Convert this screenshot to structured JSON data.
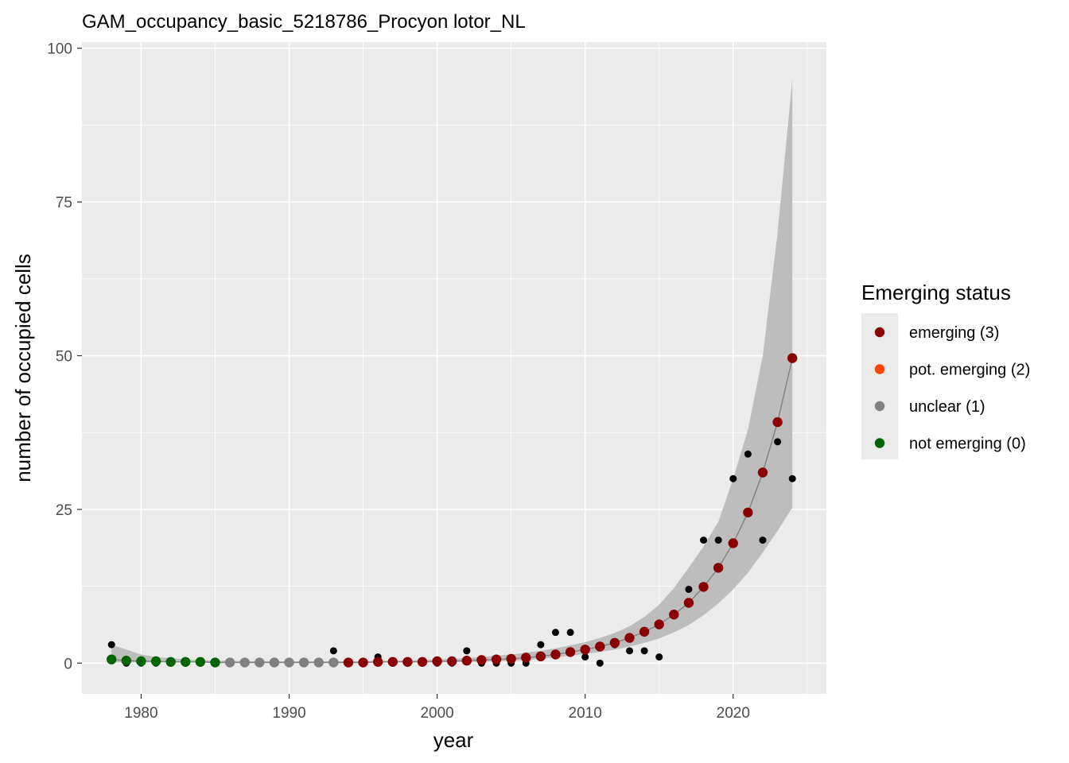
{
  "chart_data": {
    "type": "scatter",
    "title": "GAM_occupancy_basic_5218786_Procyon lotor_NL",
    "xlabel": "year",
    "ylabel": "number of occupied cells",
    "xlim": [
      1976,
      2026.3
    ],
    "ylim": [
      -5,
      101
    ],
    "x_ticks": [
      1980,
      1990,
      2000,
      2010,
      2020
    ],
    "y_ticks": [
      0,
      25,
      50,
      75,
      100
    ],
    "grid": true,
    "background": "#ebebeb",
    "legend": {
      "title": "Emerging status",
      "placement": "right",
      "items": [
        {
          "label": "emerging (3)",
          "color": "#8b0000"
        },
        {
          "label": "pot. emerging (2)",
          "color": "#ff4500"
        },
        {
          "label": "unclear (1)",
          "color": "#808080"
        },
        {
          "label": "not emerging (0)",
          "color": "#006400"
        }
      ]
    },
    "observed": {
      "color": "#000000",
      "points": [
        [
          1978,
          3
        ],
        [
          1979,
          0
        ],
        [
          1980,
          0
        ],
        [
          1981,
          0
        ],
        [
          1982,
          0
        ],
        [
          1983,
          0
        ],
        [
          1984,
          0
        ],
        [
          1985,
          0
        ],
        [
          1986,
          0
        ],
        [
          1987,
          0
        ],
        [
          1988,
          0
        ],
        [
          1989,
          0
        ],
        [
          1990,
          0
        ],
        [
          1991,
          0
        ],
        [
          1992,
          0
        ],
        [
          1993,
          2
        ],
        [
          1994,
          0
        ],
        [
          1995,
          0
        ],
        [
          1996,
          1
        ],
        [
          1997,
          0
        ],
        [
          1998,
          0
        ],
        [
          1999,
          0
        ],
        [
          2000,
          0
        ],
        [
          2001,
          0
        ],
        [
          2002,
          2
        ],
        [
          2003,
          0
        ],
        [
          2004,
          0
        ],
        [
          2005,
          0
        ],
        [
          2006,
          0
        ],
        [
          2007,
          3
        ],
        [
          2008,
          5
        ],
        [
          2009,
          5
        ],
        [
          2010,
          1
        ],
        [
          2011,
          0
        ],
        [
          2012,
          3
        ],
        [
          2013,
          2
        ],
        [
          2014,
          2
        ],
        [
          2015,
          1
        ],
        [
          2016,
          8
        ],
        [
          2017,
          12
        ],
        [
          2018,
          20
        ],
        [
          2019,
          20
        ],
        [
          2020,
          30
        ],
        [
          2021,
          34
        ],
        [
          2022,
          20
        ],
        [
          2023,
          36
        ],
        [
          2024,
          30
        ]
      ]
    },
    "fitted": {
      "line_color": "#808080",
      "band_color": "#bdbdbd",
      "x": [
        1978,
        1979,
        1980,
        1981,
        1982,
        1983,
        1984,
        1985,
        1986,
        1987,
        1988,
        1989,
        1990,
        1991,
        1992,
        1993,
        1994,
        1995,
        1996,
        1997,
        1998,
        1999,
        2000,
        2001,
        2002,
        2003,
        2004,
        2005,
        2006,
        2007,
        2008,
        2009,
        2010,
        2011,
        2012,
        2013,
        2014,
        2015,
        2016,
        2017,
        2018,
        2019,
        2020,
        2021,
        2022,
        2023,
        2024
      ],
      "y": [
        0.6,
        0.4,
        0.3,
        0.3,
        0.2,
        0.2,
        0.2,
        0.1,
        0.1,
        0.1,
        0.1,
        0.1,
        0.1,
        0.1,
        0.1,
        0.1,
        0.1,
        0.1,
        0.2,
        0.2,
        0.2,
        0.2,
        0.3,
        0.3,
        0.4,
        0.5,
        0.6,
        0.7,
        0.9,
        1.1,
        1.4,
        1.8,
        2.2,
        2.7,
        3.3,
        4.1,
        5.1,
        6.3,
        7.9,
        9.8,
        12.4,
        15.5,
        19.5,
        24.5,
        31.0,
        39.2,
        49.6
      ],
      "lower": [
        0.1,
        0.1,
        0.1,
        0.1,
        0.1,
        0.1,
        0.1,
        0.0,
        0.0,
        0.0,
        0.0,
        0.0,
        0.0,
        0.0,
        0.0,
        0.0,
        0.0,
        0.0,
        0.1,
        0.1,
        0.1,
        0.1,
        0.1,
        0.2,
        0.2,
        0.2,
        0.3,
        0.4,
        0.5,
        0.7,
        0.9,
        1.2,
        1.5,
        1.8,
        2.2,
        2.7,
        3.3,
        4.0,
        5.0,
        6.2,
        7.8,
        9.7,
        12.0,
        14.7,
        18.0,
        21.5,
        25.3
      ],
      "upper": [
        3.0,
        2.2,
        1.4,
        1.0,
        0.8,
        0.6,
        0.5,
        0.4,
        0.4,
        0.3,
        0.3,
        0.3,
        0.3,
        0.3,
        0.3,
        0.3,
        0.3,
        0.3,
        0.4,
        0.4,
        0.5,
        0.5,
        0.6,
        0.7,
        0.8,
        1.0,
        1.2,
        1.4,
        1.7,
        2.0,
        2.4,
        2.9,
        3.4,
        4.1,
        4.9,
        6.0,
        7.5,
        9.5,
        12.2,
        15.5,
        19.0,
        23.0,
        30.0,
        38.0,
        50.0,
        70.0,
        95.0
      ]
    },
    "status_points": {
      "not_emerging": {
        "color": "#006400",
        "x": [
          1978,
          1979,
          1980,
          1981,
          1982,
          1983,
          1984,
          1985
        ]
      },
      "unclear": {
        "color": "#808080",
        "x": [
          1986,
          1987,
          1988,
          1989,
          1990,
          1991,
          1992,
          1993
        ]
      },
      "emerging": {
        "color": "#8b0000",
        "x": [
          1994,
          1995,
          1996,
          1997,
          1998,
          1999,
          2000,
          2001,
          2002,
          2003,
          2004,
          2005,
          2006,
          2007,
          2008,
          2009,
          2010,
          2011,
          2012,
          2013,
          2014,
          2015,
          2016,
          2017,
          2018,
          2019,
          2020,
          2021,
          2022,
          2023,
          2024
        ]
      }
    }
  }
}
